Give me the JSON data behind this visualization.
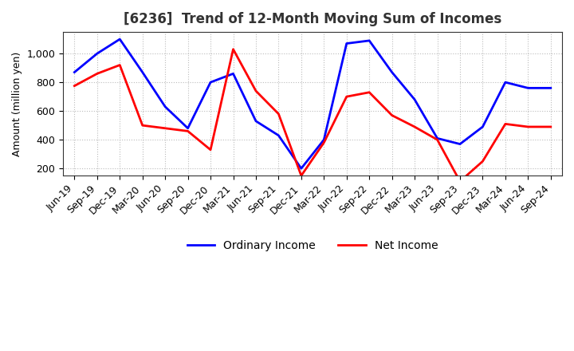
{
  "title": "[6236]  Trend of 12-Month Moving Sum of Incomes",
  "ylabel": "Amount (million yen)",
  "x_labels": [
    "Jun-19",
    "Sep-19",
    "Dec-19",
    "Mar-20",
    "Jun-20",
    "Sep-20",
    "Dec-20",
    "Mar-21",
    "Jun-21",
    "Sep-21",
    "Dec-21",
    "Mar-22",
    "Jun-22",
    "Sep-22",
    "Dec-22",
    "Mar-23",
    "Jun-23",
    "Sep-23",
    "Dec-23",
    "Mar-24",
    "Jun-24",
    "Sep-24"
  ],
  "ordinary_income": [
    870,
    1000,
    1100,
    870,
    630,
    480,
    800,
    860,
    530,
    430,
    200,
    400,
    1070,
    1090,
    870,
    680,
    410,
    370,
    490,
    800,
    760,
    760
  ],
  "net_income": [
    775,
    860,
    920,
    500,
    480,
    460,
    330,
    1030,
    740,
    580,
    150,
    380,
    700,
    730,
    570,
    490,
    400,
    110,
    250,
    510,
    490,
    490
  ],
  "ordinary_color": "#0000FF",
  "net_color": "#FF0000",
  "line_width": 2.0,
  "ylim": [
    150,
    1150
  ],
  "yticks": [
    200,
    400,
    600,
    800,
    1000
  ],
  "ytick_labels": [
    "200",
    "400",
    "600",
    "800",
    "1,000"
  ],
  "background_color": "#ffffff",
  "grid_color": "#bbbbbb",
  "title_fontsize": 12,
  "axis_fontsize": 9,
  "legend_fontsize": 10,
  "title_color": "#333333"
}
